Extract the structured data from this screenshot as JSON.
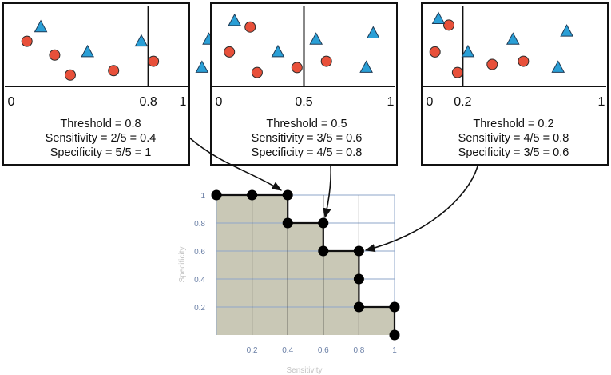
{
  "colors": {
    "circle_fill": "#e8503a",
    "triangle_fill": "#2a9fd6",
    "roc_area_fill": "#c9c8b6",
    "grid_line": "#8ea6c9",
    "tick_text": "#6a7fa6",
    "axis_label_text": "#c2c2c2"
  },
  "panels": [
    {
      "threshold_value": 0.8,
      "axis_labels": {
        "left": "0",
        "threshold": "0.8",
        "right": "1"
      },
      "lines": [
        "Threshold = 0.8",
        "Sensitivity = 2/5 = 0.4",
        "Specificity = 5/5 = 1"
      ],
      "circles": [
        [
          0.1,
          0.62
        ],
        [
          0.26,
          0.4
        ],
        [
          0.35,
          0.08
        ],
        [
          0.6,
          0.15
        ],
        [
          0.83,
          0.3
        ]
      ],
      "triangles": [
        [
          0.18,
          0.85
        ],
        [
          0.45,
          0.45
        ],
        [
          0.76,
          0.62
        ],
        [
          1.11,
          0.2
        ],
        [
          1.15,
          0.65
        ]
      ]
    },
    {
      "threshold_value": 0.5,
      "axis_labels": {
        "left": "0",
        "threshold": "0.5",
        "right": "1"
      },
      "lines": [
        "Threshold = 0.5",
        "Sensitivity = 3/5 = 0.6",
        "Specificity = 4/5 = 0.8"
      ],
      "circles": [
        [
          0.07,
          0.45
        ],
        [
          0.19,
          0.85
        ],
        [
          0.23,
          0.12
        ],
        [
          0.46,
          0.2
        ],
        [
          0.63,
          0.3
        ]
      ],
      "triangles": [
        [
          0.1,
          0.95
        ],
        [
          0.35,
          0.45
        ],
        [
          0.57,
          0.65
        ],
        [
          0.86,
          0.2
        ],
        [
          0.9,
          0.75
        ]
      ]
    },
    {
      "threshold_value": 0.2,
      "axis_labels": {
        "left": "0",
        "threshold": "0.2",
        "right": "1"
      },
      "lines": [
        "Threshold = 0.2",
        "Sensitivity = 4/5 = 0.8",
        "Specificity = 3/5 = 0.6"
      ],
      "circles": [
        [
          0.04,
          0.45
        ],
        [
          0.12,
          0.88
        ],
        [
          0.17,
          0.12
        ],
        [
          0.37,
          0.25
        ],
        [
          0.55,
          0.3
        ]
      ],
      "triangles": [
        [
          0.06,
          0.98
        ],
        [
          0.23,
          0.45
        ],
        [
          0.49,
          0.65
        ],
        [
          0.75,
          0.2
        ],
        [
          0.8,
          0.78
        ]
      ]
    }
  ],
  "chart_data": {
    "type": "line",
    "title": "",
    "xlabel": "Sensitivity",
    "ylabel": "Specificity",
    "xlim": [
      0,
      1
    ],
    "ylim": [
      0,
      1
    ],
    "grid": true,
    "x_ticks": [
      "0.2",
      "0.4",
      "0.6",
      "0.8",
      "1"
    ],
    "y_ticks": [
      "0.2",
      "0.4",
      "0.6",
      "0.8",
      "1"
    ],
    "points": [
      [
        0,
        1
      ],
      [
        0.2,
        1
      ],
      [
        0.4,
        1
      ],
      [
        0.4,
        0.8
      ],
      [
        0.6,
        0.8
      ],
      [
        0.6,
        0.6
      ],
      [
        0.8,
        0.6
      ],
      [
        0.8,
        0.4
      ],
      [
        0.8,
        0.2
      ],
      [
        1,
        0.2
      ],
      [
        1,
        0
      ]
    ],
    "highlighted_points": [
      {
        "threshold": 0.8,
        "x": 0.4,
        "y": 1
      },
      {
        "threshold": 0.5,
        "x": 0.6,
        "y": 0.8
      },
      {
        "threshold": 0.2,
        "x": 0.8,
        "y": 0.6
      }
    ]
  }
}
